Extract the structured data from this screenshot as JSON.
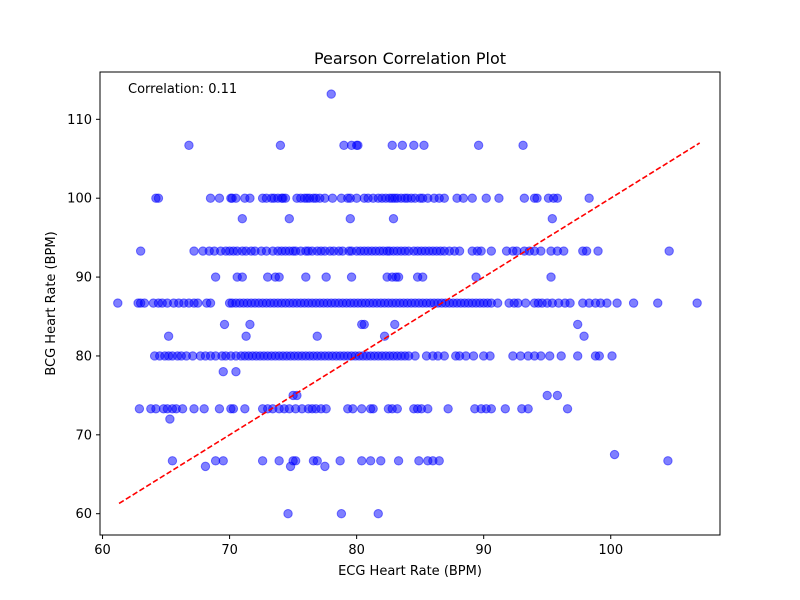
{
  "chart_data": {
    "type": "scatter",
    "title": "Pearson Correlation Plot",
    "xlabel": "ECG Heart Rate (BPM)",
    "ylabel": "BCG Heart Rate (BPM)",
    "xlim": [
      59.8,
      108.6
    ],
    "ylim": [
      57.3,
      116.0
    ],
    "xticks": [
      60,
      70,
      80,
      90,
      100
    ],
    "yticks": [
      60,
      70,
      80,
      90,
      100,
      110
    ],
    "xtick_labels": [
      "60",
      "70",
      "80",
      "90",
      "100"
    ],
    "ytick_labels": [
      "60",
      "70",
      "80",
      "90",
      "100",
      "110"
    ],
    "grid": false,
    "annotation": "Correlation: 0.11",
    "point_color": "#0000ff",
    "point_alpha": 0.5,
    "line_color": "#ff0000",
    "fit_line": {
      "x": [
        61.3,
        107.0
      ],
      "y": [
        61.3,
        107.0
      ]
    },
    "series": [
      {
        "rows": [
          {
            "y": 113.2,
            "x": [
              78.0
            ]
          },
          {
            "y": 106.7,
            "x": [
              66.8,
              74.0,
              79.0,
              79.6,
              80.0,
              80.1,
              82.8,
              83.6,
              84.5,
              85.3,
              89.6,
              93.1
            ]
          },
          {
            "y": 100.0,
            "x": [
              64.2,
              64.4,
              68.5,
              69.2,
              70.1,
              70.2,
              70.5,
              71.2,
              71.6,
              72.6,
              72.9,
              73.3,
              73.5,
              73.8,
              74.1,
              74.2,
              74.4,
              75.3,
              75.6,
              75.9,
              76.1,
              76.3,
              76.6,
              76.8,
              77.1,
              77.5,
              78.1,
              78.8,
              79.3,
              79.5,
              80.0,
              80.6,
              80.9,
              81.3,
              81.7,
              82.0,
              82.3,
              82.6,
              82.8,
              83.0,
              83.2,
              83.5,
              83.8,
              84.0,
              84.3,
              84.6,
              85.0,
              85.2,
              85.6,
              86.1,
              86.5,
              86.9,
              87.9,
              88.4,
              89.1,
              90.2,
              91.2,
              93.2,
              94.0,
              94.2,
              95.1,
              95.5,
              95.8,
              98.3
            ]
          },
          {
            "y": 97.4,
            "x": [
              71.0,
              74.7,
              79.5,
              82.9,
              95.4
            ]
          },
          {
            "y": 93.3,
            "x": [
              63.0,
              67.2,
              67.9,
              68.4,
              68.8,
              69.3,
              69.7,
              70.0,
              70.3,
              70.6,
              71.0,
              71.3,
              71.7,
              72.0,
              72.5,
              72.9,
              73.4,
              73.8,
              74.1,
              74.4,
              74.7,
              75.0,
              75.2,
              75.6,
              76.0,
              76.2,
              76.5,
              76.9,
              77.2,
              77.5,
              77.9,
              78.2,
              78.6,
              78.9,
              79.4,
              79.6,
              80.0,
              80.3,
              80.6,
              80.9,
              81.2,
              81.5,
              81.8,
              82.1,
              82.4,
              82.6,
              82.9,
              83.2,
              83.5,
              83.8,
              84.1,
              84.5,
              84.8,
              85.1,
              85.4,
              85.7,
              86.0,
              86.3,
              86.6,
              86.9,
              87.3,
              87.7,
              88.1,
              89.1,
              89.5,
              89.8,
              90.6,
              91.8,
              92.3,
              92.6,
              93.2,
              93.6,
              94.0,
              94.5,
              95.3,
              95.8,
              96.3,
              97.8,
              98.1,
              99.0,
              104.6
            ]
          },
          {
            "y": 90.0,
            "x": [
              68.9,
              70.6,
              71.0,
              73.0,
              73.6,
              73.9,
              76.0,
              77.6,
              79.6,
              82.4,
              82.8,
              83.1,
              83.3,
              84.8,
              85.2,
              89.4,
              95.3
            ]
          },
          {
            "y": 86.7,
            "x": [
              61.2,
              62.8,
              63.0,
              63.3,
              64.0,
              64.4,
              64.7,
              65.1,
              65.6,
              66.0,
              66.4,
              66.8,
              67.2,
              67.5,
              68.2,
              68.5,
              70.0,
              70.2,
              70.5,
              70.8,
              71.1,
              71.4,
              71.7,
              72.0,
              72.3,
              72.6,
              72.9,
              73.2,
              73.5,
              73.8,
              74.1,
              74.4,
              74.7,
              75.0,
              75.3,
              75.6,
              75.9,
              76.2,
              76.5,
              76.8,
              77.1,
              77.4,
              77.7,
              78.0,
              78.3,
              78.6,
              78.9,
              79.2,
              79.5,
              79.8,
              80.1,
              80.4,
              80.7,
              81.0,
              81.3,
              81.6,
              81.9,
              82.2,
              82.5,
              82.8,
              83.1,
              83.4,
              83.7,
              84.0,
              84.3,
              84.6,
              84.9,
              85.2,
              85.5,
              85.8,
              86.1,
              86.4,
              86.7,
              87.0,
              87.3,
              87.6,
              87.9,
              88.2,
              88.5,
              88.8,
              89.1,
              89.4,
              89.7,
              90.0,
              90.3,
              90.6,
              91.1,
              92.0,
              92.4,
              92.7,
              93.3,
              94.0,
              94.3,
              94.6,
              95.0,
              95.4,
              95.9,
              96.4,
              96.8,
              97.8,
              98.3,
              98.8,
              99.2,
              99.7,
              100.5,
              101.8,
              103.7,
              106.8
            ]
          },
          {
            "y": 84.0,
            "x": [
              69.6,
              71.6,
              80.4,
              80.6,
              83.0,
              97.4
            ]
          },
          {
            "y": 82.5,
            "x": [
              65.2,
              71.3,
              76.9,
              82.2,
              97.9
            ]
          },
          {
            "y": 80.0,
            "x": [
              64.1,
              64.5,
              64.9,
              65.2,
              65.5,
              65.9,
              66.2,
              66.6,
              67.1,
              67.7,
              68.1,
              68.5,
              68.9,
              69.4,
              69.7,
              70.1,
              70.5,
              70.9,
              71.2,
              71.5,
              71.8,
              72.1,
              72.4,
              72.7,
              73.0,
              73.3,
              73.6,
              73.9,
              74.2,
              74.5,
              74.8,
              75.1,
              75.4,
              75.7,
              76.0,
              76.3,
              76.6,
              76.9,
              77.2,
              77.5,
              77.8,
              78.1,
              78.4,
              78.7,
              79.0,
              79.3,
              79.6,
              79.9,
              80.2,
              80.5,
              80.8,
              81.1,
              81.4,
              81.7,
              82.0,
              82.3,
              82.6,
              82.9,
              83.2,
              83.5,
              83.8,
              84.1,
              84.6,
              85.5,
              86.0,
              86.4,
              86.9,
              87.8,
              88.1,
              88.6,
              89.2,
              90.0,
              90.5,
              92.3,
              92.9,
              93.5,
              94.0,
              94.5,
              95.2,
              96.1,
              97.4,
              98.8,
              99.1,
              100.1
            ]
          },
          {
            "y": 78.0,
            "x": [
              69.5,
              70.5
            ]
          },
          {
            "y": 75.0,
            "x": [
              75.0,
              75.3,
              95.0,
              95.8
            ]
          },
          {
            "y": 73.3,
            "x": [
              62.9,
              63.8,
              64.2,
              64.8,
              65.1,
              65.5,
              65.8,
              66.3,
              67.2,
              68.0,
              69.2,
              70.1,
              70.3,
              71.2,
              72.6,
              73.0,
              73.4,
              73.9,
              74.3,
              74.7,
              75.2,
              75.7,
              76.2,
              76.5,
              76.8,
              77.2,
              77.6,
              79.3,
              79.7,
              80.4,
              81.1,
              81.3,
              82.5,
              82.8,
              83.2,
              84.5,
              84.8,
              85.1,
              85.6,
              87.2,
              89.3,
              89.8,
              90.2,
              90.6,
              91.7,
              93.0,
              93.5,
              96.6
            ]
          },
          {
            "y": 72.0,
            "x": [
              65.3
            ]
          },
          {
            "y": 67.5,
            "x": [
              100.3
            ]
          },
          {
            "y": 66.7,
            "x": [
              65.5,
              68.9,
              69.5,
              72.6,
              73.9,
              75.0,
              75.2,
              76.6,
              76.9,
              78.7,
              80.4,
              81.1,
              81.9,
              83.3,
              84.9,
              85.6,
              86.0,
              86.5,
              104.5
            ]
          },
          {
            "y": 66.0,
            "x": [
              68.1,
              74.8,
              77.5
            ]
          },
          {
            "y": 60.0,
            "x": [
              74.6,
              78.8,
              81.7
            ]
          }
        ]
      }
    ]
  }
}
